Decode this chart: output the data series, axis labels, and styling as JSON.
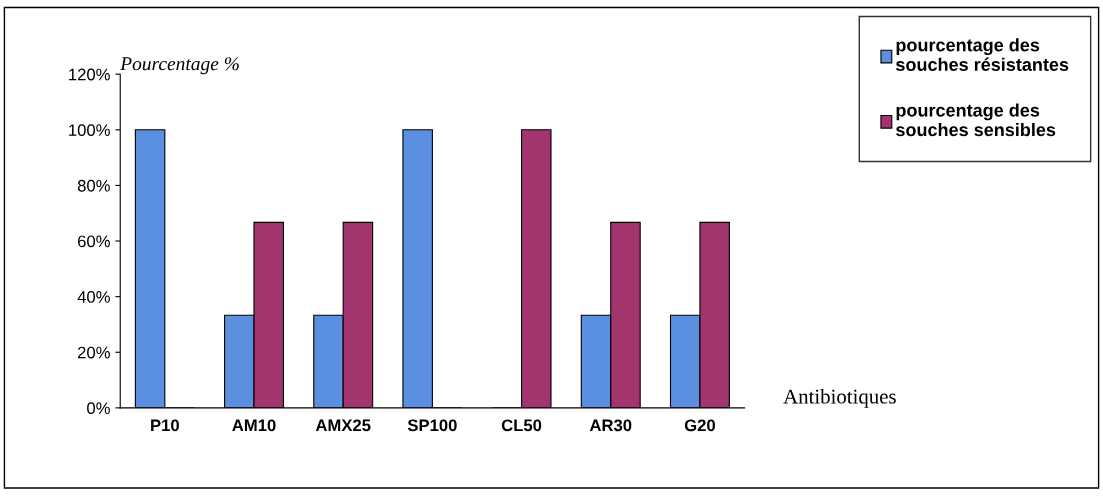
{
  "chart_data": {
    "type": "bar",
    "ylabel": "Pourcentage %",
    "xlabel": "Antibiotiques",
    "categories": [
      "P10",
      "AM10",
      "AMX25",
      "SP100",
      "CL50",
      "AR30",
      "G20"
    ],
    "series": [
      {
        "name": "pourcentage des souches résistantes",
        "color": "#5b8fe0",
        "values": [
          100,
          33.3,
          33.3,
          100,
          0,
          33.3,
          33.3
        ]
      },
      {
        "name": "pourcentage des souches sensibles",
        "color": "#a2346e",
        "values": [
          0,
          66.7,
          66.7,
          0,
          100,
          66.7,
          66.7
        ]
      }
    ],
    "ylim": [
      0,
      120
    ],
    "yticks": [
      {
        "value": 0,
        "label": "0%"
      },
      {
        "value": 20,
        "label": "20%"
      },
      {
        "value": 40,
        "label": "40%"
      },
      {
        "value": 60,
        "label": "60%"
      },
      {
        "value": 80,
        "label": "80%"
      },
      {
        "value": 100,
        "label": "100%"
      },
      {
        "value": 120,
        "label": "120%"
      }
    ],
    "grid": false,
    "legend": "top right"
  }
}
